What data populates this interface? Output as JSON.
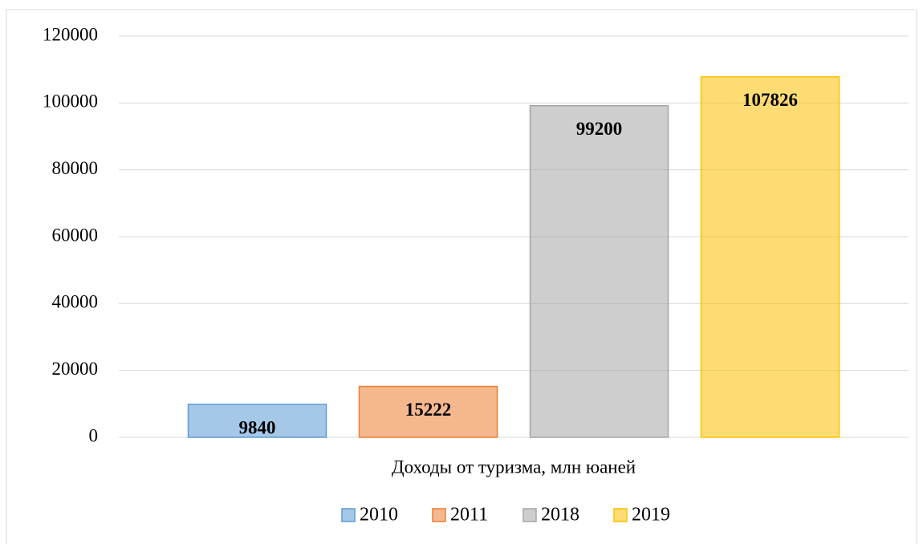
{
  "chart_data": {
    "type": "bar",
    "categories": [
      "Доходы от туризма, млн юаней"
    ],
    "series": [
      {
        "name": "2010",
        "color": "#5b9bd5",
        "values": [
          9840
        ]
      },
      {
        "name": "2011",
        "color": "#ed7d31",
        "values": [
          15222
        ]
      },
      {
        "name": "2018",
        "color": "#a5a5a5",
        "values": [
          99200
        ]
      },
      {
        "name": "2019",
        "color": "#ffc000",
        "values": [
          107826
        ]
      }
    ],
    "ylim": [
      0,
      120000
    ],
    "yticks": [
      0,
      20000,
      40000,
      60000,
      80000,
      100000,
      120000
    ],
    "grid": true,
    "legend": "bottom"
  }
}
